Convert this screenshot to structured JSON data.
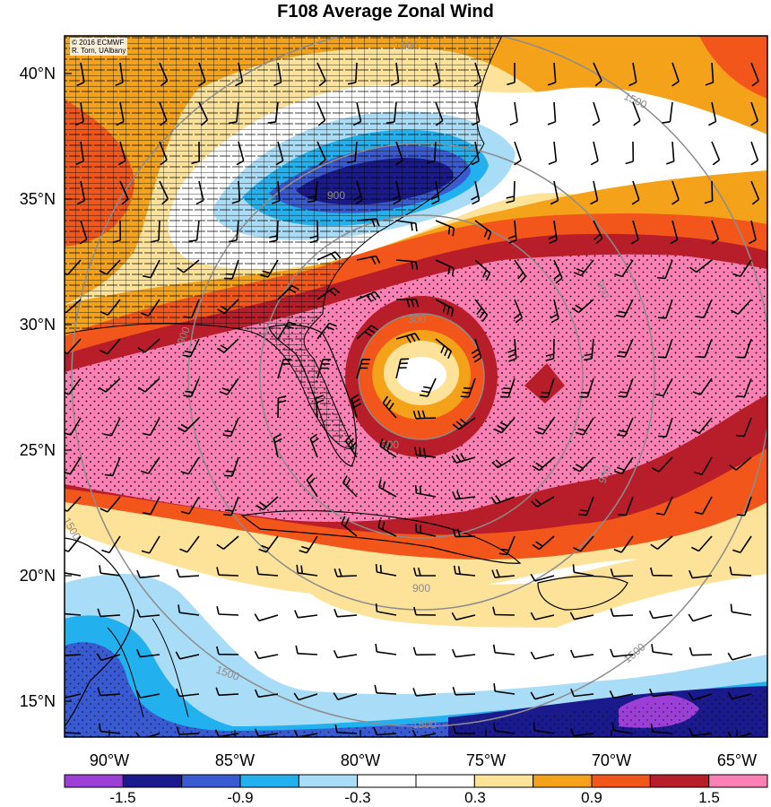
{
  "title": "F108 Average Zonal Wind",
  "credit": {
    "line1": "© 2016 ECMWF",
    "line2": "R. Torn, UAlbany"
  },
  "lat_labels": [
    "40°N",
    "35°N",
    "30°N",
    "25°N",
    "20°N",
    "15°N"
  ],
  "lon_labels": [
    "90°W",
    "85°W",
    "80°W",
    "75°W",
    "70°W",
    "65°W"
  ],
  "colorbar": {
    "colors": [
      "#9b3fd6",
      "#1a1a8c",
      "#3a5ad1",
      "#22b0ee",
      "#a9dcf6",
      "#ffffff",
      "#ffffff",
      "#fde39a",
      "#f4a21a",
      "#f2561a",
      "#b81e2a",
      "#fb80b4"
    ],
    "labels": [
      "-1.5",
      "-0.9",
      "-0.3",
      "0.3",
      "0.9",
      "1.5"
    ]
  },
  "contour_labels": [
    "1500",
    "1500",
    "900",
    "900",
    "900",
    "300",
    "300",
    "900",
    "900",
    "1500",
    "1500",
    "1500",
    "1500"
  ],
  "contour_color": "#8c8c8c"
}
